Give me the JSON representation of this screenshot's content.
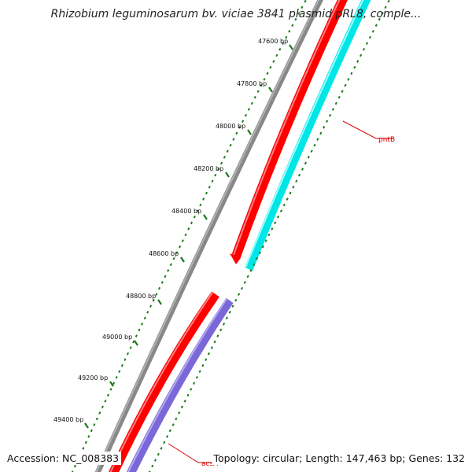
{
  "title": "Rhizobium leguminosarum bv. viciae 3841 plasmid pRL8, comple...",
  "accession": "Accession: NC_008383",
  "summary": "Topology: circular; Length: 147,463 bp; Genes: 132",
  "ticks": [
    {
      "bp": 47600,
      "label": "47600 bp"
    },
    {
      "bp": 47800,
      "label": "47800 bp"
    },
    {
      "bp": 48000,
      "label": "48000 bp"
    },
    {
      "bp": 48200,
      "label": "48200 bp"
    },
    {
      "bp": 48400,
      "label": "48400 bp"
    },
    {
      "bp": 48600,
      "label": "48600 bp"
    },
    {
      "bp": 48800,
      "label": "48800 bp"
    },
    {
      "bp": 49000,
      "label": "49000 bp"
    },
    {
      "bp": 49200,
      "label": "49200 bp"
    },
    {
      "bp": 49400,
      "label": "49400 bp"
    }
  ],
  "genes": [
    {
      "name": "pntB",
      "color": "#00e5e5",
      "strand_color": "#ff0000"
    },
    {
      "name": "acsA",
      "color": "#7b68d8",
      "strand_color": "#ff0000"
    }
  ],
  "colors": {
    "backbone": "#808080",
    "cds": "#ff0000",
    "pntB": "#00e5e5",
    "acsA": "#7b68d8",
    "ticks": "#1a7a1a",
    "label_line": "#dd0000"
  }
}
